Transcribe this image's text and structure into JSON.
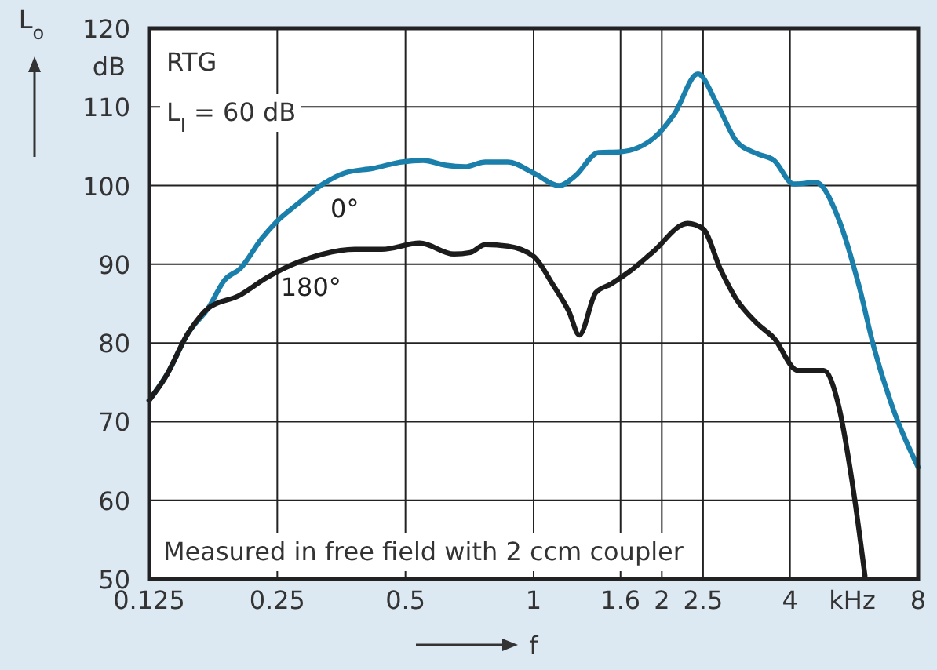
{
  "chart_data": {
    "type": "line",
    "xlabel": "f",
    "ylabel": "L$_{o}$",
    "log": "x",
    "grid": true,
    "xlim": [
      0.125,
      8
    ],
    "xticks": [
      0.125,
      0.25,
      0.5,
      1,
      1.6,
      2,
      2.5,
      4,
      8
    ],
    "ylim": [
      50,
      120
    ],
    "yticks": [
      50,
      60,
      70,
      80,
      90,
      100,
      110,
      120
    ],
    "annotations": [
      "dB",
      "kHz",
      "RTG",
      "L$_{I}$ = 60 dB",
      "Measured in free field with 2 ccm coupler"
    ],
    "series": [
      {
        "name": "0°",
        "color": "#1a7fab",
        "x": [
          0.125,
          0.138,
          0.155,
          0.172,
          0.188,
          0.205,
          0.23,
          0.25,
          0.281,
          0.32,
          0.36,
          0.42,
          0.49,
          0.55,
          0.62,
          0.69,
          0.77,
          0.87,
          1,
          1.15,
          1.25,
          1.42,
          1.6,
          1.92,
          2.14,
          2.43,
          2.7,
          2.99,
          3.33,
          3.67,
          4.08,
          4.6,
          5.2,
          5.8,
          6.3,
          7,
          8
        ],
        "values": [
          72.7,
          76.1,
          81.4,
          84.4,
          88,
          89.5,
          93.3,
          95.5,
          97.8,
          100.2,
          101.6,
          102.2,
          103,
          103.2,
          102.6,
          102.4,
          103,
          103,
          101.6,
          100,
          101.2,
          104.2,
          104.3,
          106.1,
          109.1,
          114.2,
          110.3,
          105.7,
          104.1,
          103.2,
          100.2,
          100.4,
          95.8,
          87.4,
          79.4,
          71.5,
          64.2
        ]
      },
      {
        "name": "180°",
        "color": "#1c1c1c",
        "x": [
          0.125,
          0.136,
          0.155,
          0.172,
          0.203,
          0.236,
          0.281,
          0.32,
          0.38,
          0.44,
          0.54,
          0.65,
          0.71,
          0.77,
          0.87,
          1,
          1.11,
          1.21,
          1.28,
          1.4,
          1.52,
          1.7,
          1.9,
          2.3,
          2.5,
          2.75,
          2.99,
          3.33,
          3.67,
          4.17,
          4.8,
          5.2,
          5.6,
          6
        ],
        "values": [
          72.7,
          75.5,
          81.4,
          84.4,
          86,
          88.3,
          90.3,
          91.3,
          91.9,
          91.9,
          92.7,
          91.3,
          91.5,
          92.5,
          92.3,
          91,
          87.4,
          84,
          81,
          86.4,
          87.5,
          89.3,
          91.5,
          95.2,
          94.5,
          89.3,
          85.6,
          82.6,
          80.6,
          76.5,
          76.5,
          72.1,
          62.3,
          50.4
        ]
      }
    ]
  }
}
